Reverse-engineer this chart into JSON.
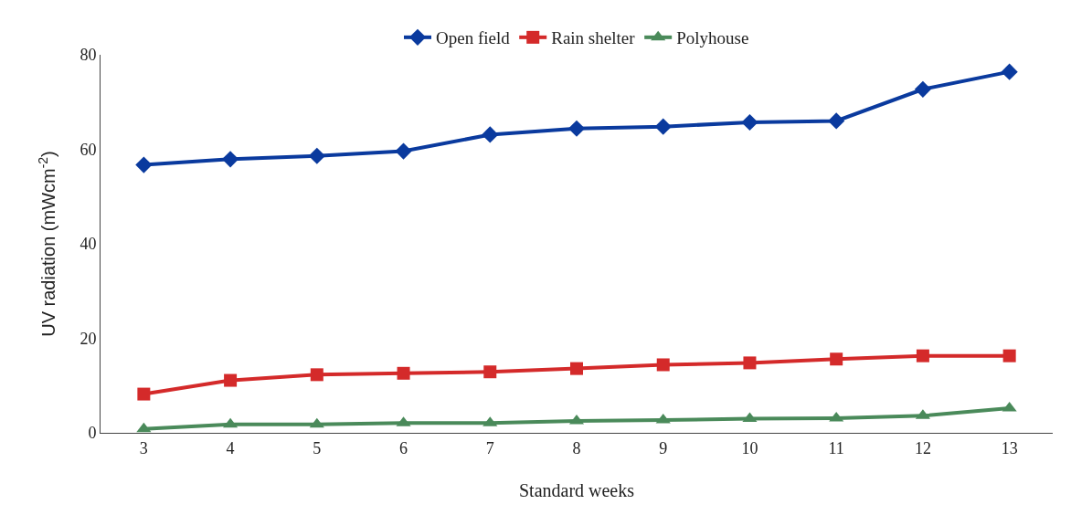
{
  "chart_data": {
    "type": "line",
    "xlabel": "Standard weeks",
    "ylabel": "UV radiation (mWcm$^{-2}$)",
    "categories": [
      "3",
      "4",
      "5",
      "6",
      "7",
      "8",
      "9",
      "10",
      "11",
      "12",
      "13"
    ],
    "series": [
      {
        "name": "Open field",
        "color": "#0a3a9e",
        "marker": "diamond",
        "values": [
          56.7,
          57.9,
          58.6,
          59.6,
          63.1,
          64.4,
          64.8,
          65.7,
          66.0,
          72.7,
          76.4
        ]
      },
      {
        "name": "Rain shelter",
        "color": "#d42a2a",
        "marker": "square",
        "values": [
          8.2,
          11.1,
          12.3,
          12.6,
          12.9,
          13.6,
          14.4,
          14.8,
          15.6,
          16.3,
          16.3
        ]
      },
      {
        "name": "Polyhouse",
        "color": "#4a8a5a",
        "marker": "triangle",
        "values": [
          0.8,
          1.8,
          1.8,
          2.1,
          2.1,
          2.5,
          2.7,
          3.0,
          3.1,
          3.6,
          5.2
        ]
      }
    ],
    "ylim": [
      0,
      80
    ],
    "yticks": [
      0,
      20,
      40,
      60,
      80
    ],
    "grid": false,
    "legend": "top",
    "line_style": "solid"
  }
}
